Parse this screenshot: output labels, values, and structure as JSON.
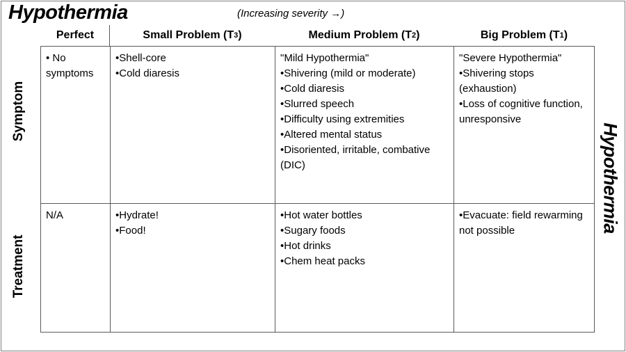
{
  "page": {
    "title": "Hypothermia",
    "severity_note": "(Increasing severity →)",
    "right_side_label": "Hypothermia"
  },
  "colors": {
    "text": "#000000",
    "border": "#595959"
  },
  "table": {
    "col_headers": [
      {
        "base": "Perfect",
        "tier": "",
        "close": ""
      },
      {
        "base": "Small Problem (T",
        "tier": "3",
        "close": ")"
      },
      {
        "base": "Medium Problem (T",
        "tier": "2",
        "close": ")"
      },
      {
        "base": "Big Problem (T",
        "tier": "1",
        "close": ")"
      }
    ],
    "row_headers": [
      "Symptom",
      "Treatment"
    ],
    "cells": {
      "symptom": {
        "perfect": "• No symptoms",
        "small": "•Shell-core\n•Cold diaresis",
        "medium": "\"Mild Hypothermia\"\n•Shivering (mild or moderate)\n•Cold diaresis\n•Slurred speech\n•Difficulty using extremities\n•Altered mental status\n•Disoriented, irritable, combative (DIC)",
        "big": "\"Severe Hypothermia\"\n•Shivering stops (exhaustion)\n•Loss of cognitive function, unresponsive"
      },
      "treatment": {
        "perfect": "N/A",
        "small": "•Hydrate!\n•Food!",
        "medium": "•Hot water bottles\n•Sugary foods\n•Hot drinks\n•Chem heat packs",
        "big": "•Evacuate: field rewarming not possible"
      }
    }
  }
}
